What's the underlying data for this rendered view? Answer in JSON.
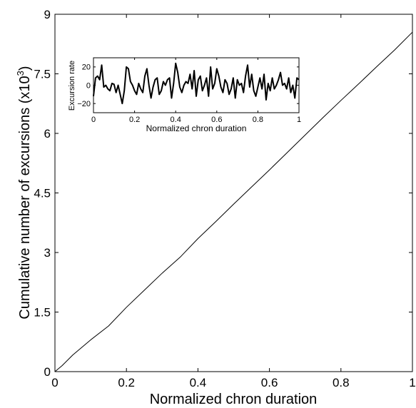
{
  "chart_data": [
    {
      "type": "line",
      "title": "",
      "xlabel": "Normalized chron duration",
      "ylabel": "Cumulative number of excursions (x10",
      "ylabel_exponent": "3",
      "ylabel_suffix": ")",
      "xlim": [
        0,
        1
      ],
      "ylim": [
        0,
        9
      ],
      "x_ticks": [
        0,
        0.2,
        0.4,
        0.6,
        0.8,
        1
      ],
      "x_tick_labels": [
        "0",
        "0.2",
        "0.4",
        "0.6",
        "0.8",
        "1"
      ],
      "y_ticks": [
        0,
        1.5,
        3,
        4.5,
        6,
        7.5,
        9
      ],
      "y_tick_labels": [
        "0",
        "1.5",
        "3",
        "4.5",
        "6",
        "7.5",
        "9"
      ],
      "grid": false,
      "series": [
        {
          "color": "#000000",
          "x": [
            0,
            0.02,
            0.05,
            0.1,
            0.15,
            0.2,
            0.25,
            0.3,
            0.35,
            0.4,
            0.45,
            0.5,
            0.55,
            0.6,
            0.65,
            0.7,
            0.75,
            0.8,
            0.85,
            0.9,
            0.95,
            1
          ],
          "y": [
            0,
            0.15,
            0.42,
            0.8,
            1.15,
            1.62,
            2.05,
            2.48,
            2.88,
            3.35,
            3.78,
            4.22,
            4.65,
            5.08,
            5.52,
            5.96,
            6.4,
            6.83,
            7.25,
            7.68,
            8.1,
            8.55
          ]
        }
      ]
    },
    {
      "type": "line",
      "title": "",
      "xlabel": "Normalized chron duration",
      "ylabel": "Excursion rate",
      "xlim": [
        0,
        1
      ],
      "ylim": [
        -30,
        30
      ],
      "x_ticks": [
        0,
        0.2,
        0.4,
        0.6,
        0.8,
        1
      ],
      "x_tick_labels": [
        "0",
        "0.2",
        "0.4",
        "0.6",
        "0.8",
        "1"
      ],
      "y_ticks": [
        -20,
        0,
        20
      ],
      "y_tick_labels": [
        "−20",
        "0",
        "20"
      ],
      "grid": false,
      "series": [
        {
          "color": "#000000",
          "x": [
            0,
            0.01,
            0.02,
            0.03,
            0.04,
            0.05,
            0.06,
            0.07,
            0.08,
            0.09,
            0.1,
            0.11,
            0.12,
            0.13,
            0.14,
            0.15,
            0.16,
            0.17,
            0.18,
            0.19,
            0.2,
            0.21,
            0.22,
            0.23,
            0.24,
            0.25,
            0.26,
            0.27,
            0.28,
            0.29,
            0.3,
            0.31,
            0.32,
            0.33,
            0.34,
            0.35,
            0.36,
            0.37,
            0.38,
            0.39,
            0.4,
            0.41,
            0.42,
            0.43,
            0.44,
            0.45,
            0.46,
            0.47,
            0.48,
            0.49,
            0.5,
            0.51,
            0.52,
            0.53,
            0.54,
            0.55,
            0.56,
            0.57,
            0.58,
            0.59,
            0.6,
            0.61,
            0.62,
            0.63,
            0.64,
            0.65,
            0.66,
            0.67,
            0.68,
            0.69,
            0.7,
            0.71,
            0.72,
            0.73,
            0.74,
            0.75,
            0.76,
            0.77,
            0.78,
            0.79,
            0.8,
            0.81,
            0.82,
            0.83,
            0.84,
            0.85,
            0.86,
            0.87,
            0.88,
            0.89,
            0.9,
            0.91,
            0.92,
            0.93,
            0.94,
            0.95,
            0.96,
            0.97,
            0.98,
            0.99,
            1
          ],
          "y": [
            -12,
            8,
            10,
            6,
            22,
            -2,
            0,
            -4,
            -6,
            2,
            1,
            -8,
            0,
            -10,
            -20,
            -6,
            20,
            18,
            4,
            0,
            -6,
            -10,
            2,
            -4,
            -8,
            10,
            18,
            0,
            -14,
            -2,
            6,
            8,
            -10,
            -6,
            4,
            0,
            6,
            8,
            -14,
            2,
            24,
            14,
            -2,
            -8,
            0,
            4,
            2,
            12,
            -4,
            16,
            -12,
            6,
            10,
            -6,
            0,
            8,
            -12,
            20,
            -4,
            2,
            18,
            10,
            -2,
            -8,
            6,
            2,
            -10,
            -4,
            8,
            -14,
            6,
            0,
            2,
            -8,
            10,
            22,
            -2,
            12,
            -6,
            -12,
            -2,
            8,
            -4,
            12,
            -16,
            2,
            -6,
            8,
            -4,
            0,
            6,
            14,
            0,
            2,
            -4,
            8,
            -8,
            0,
            -14,
            8,
            6
          ]
        }
      ]
    }
  ]
}
